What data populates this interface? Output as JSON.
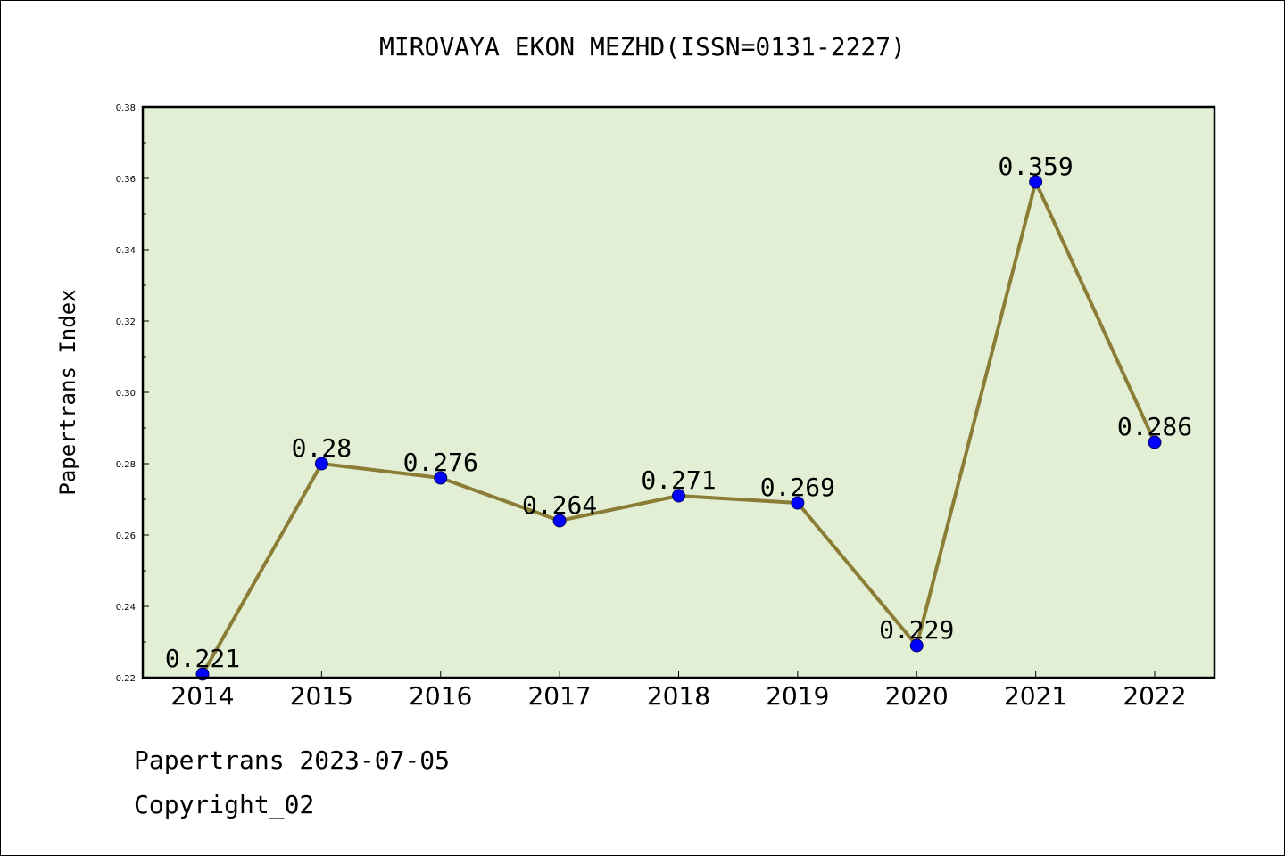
{
  "chart_data": {
    "type": "line",
    "title": "MIROVAYA EKON MEZHD(ISSN=0131-2227)",
    "xlabel": "",
    "ylabel": "Papertrans Index",
    "categories": [
      "2014",
      "2015",
      "2016",
      "2017",
      "2018",
      "2019",
      "2020",
      "2021",
      "2022"
    ],
    "series": [
      {
        "values": [
          0.221,
          0.28,
          0.276,
          0.264,
          0.271,
          0.269,
          0.229,
          0.359,
          0.286
        ]
      }
    ],
    "data_labels": [
      "0.221",
      "0.28",
      "0.276",
      "0.264",
      "0.271",
      "0.269",
      "0.229",
      "0.359",
      "0.286"
    ],
    "ylim": [
      0.22,
      0.38
    ],
    "yticks": [
      "0.22",
      "0.24",
      "0.26",
      "0.28",
      "0.30",
      "0.32",
      "0.34",
      "0.36",
      "0.38"
    ],
    "grid": false,
    "colors": {
      "plot_background": "#e2efd5",
      "line": "#8b7d35",
      "marker": "#0000ff"
    }
  },
  "footer": {
    "line1": "Papertrans 2023-07-05",
    "line2": "Copyright_02"
  }
}
